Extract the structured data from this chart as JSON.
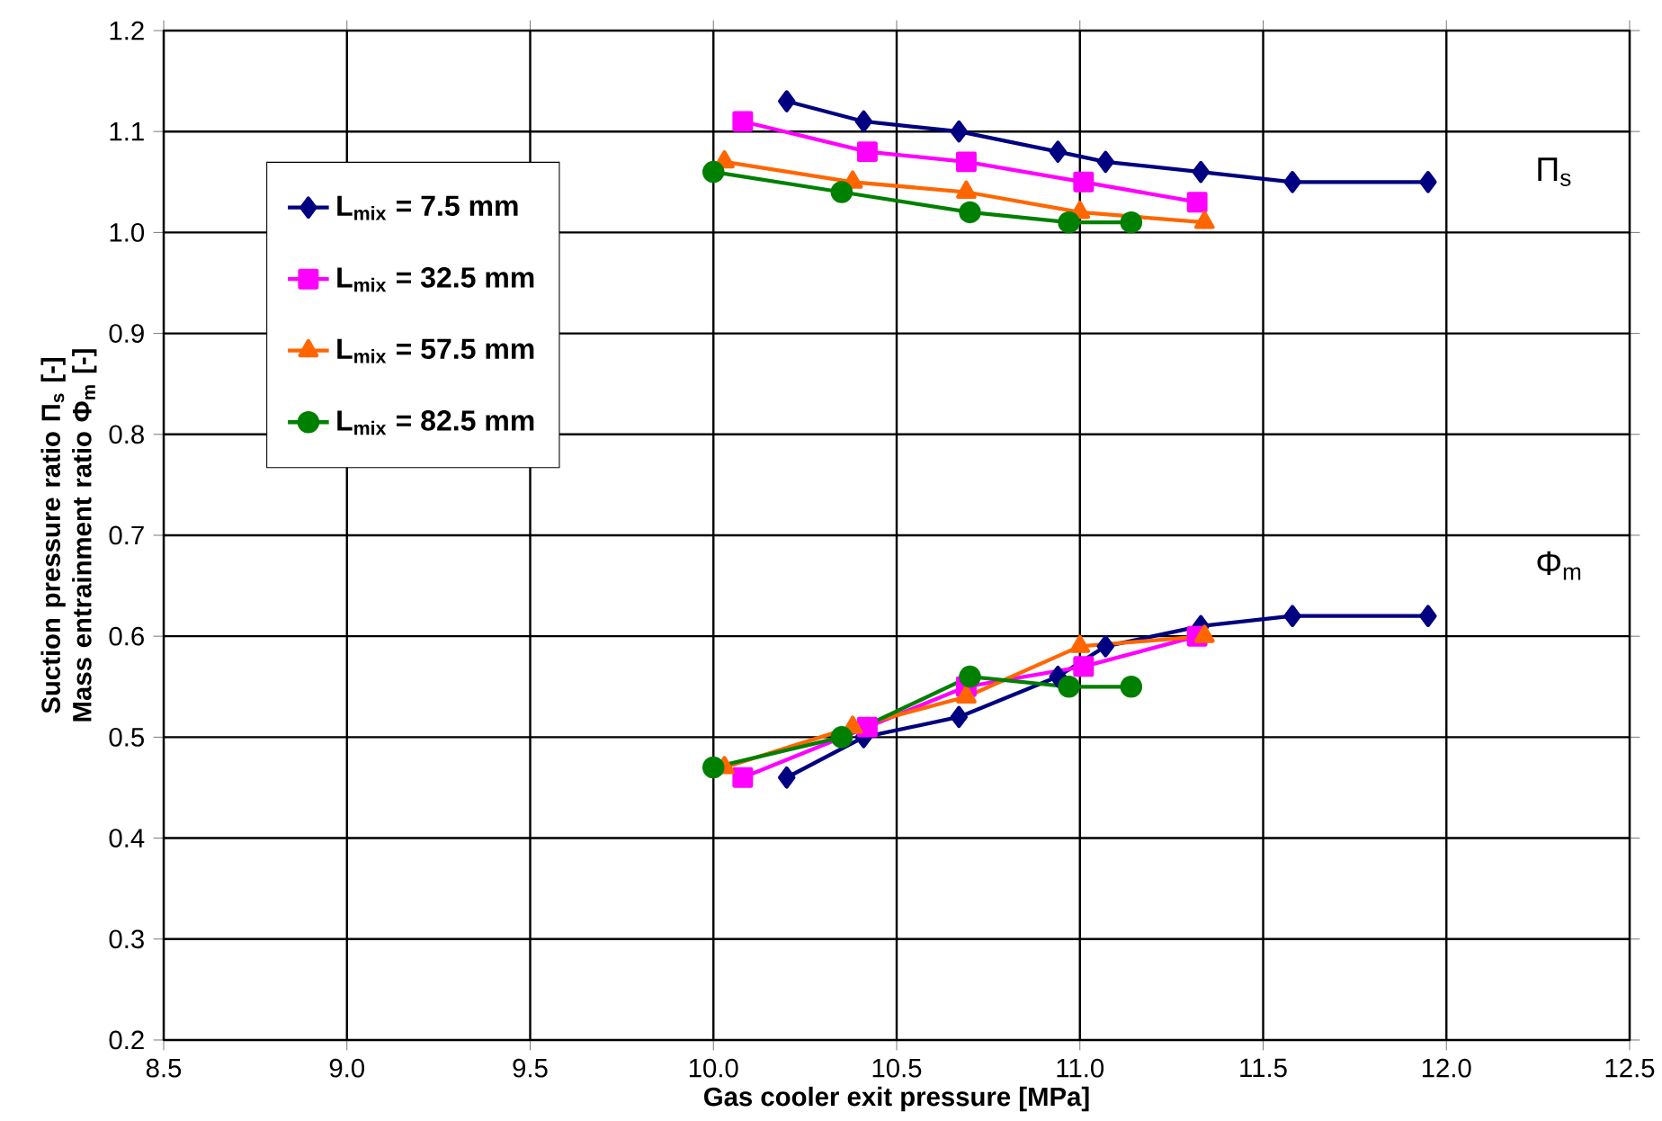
{
  "chart_data": {
    "type": "line",
    "xlabel": "Gas cooler exit pressure [MPa]",
    "ylabel": "Suction pressure ratio Π$_{s}$ [-] Mass entrainment ratio Φ$_{m}$ [-]",
    "xlim": [
      8.5,
      12.5
    ],
    "ylim": [
      0.2,
      1.2
    ],
    "xticks": [
      {
        "value": 8.5,
        "label": "8.5"
      },
      {
        "value": 9,
        "label": "9.0"
      },
      {
        "value": 9.5,
        "label": "9.5"
      },
      {
        "value": 10,
        "label": "10.0"
      },
      {
        "value": 10.5,
        "label": "10.5"
      },
      {
        "value": 11,
        "label": "11.0"
      },
      {
        "value": 11.5,
        "label": "11.5"
      },
      {
        "value": 12,
        "label": "12.0"
      },
      {
        "value": 12.5,
        "label": "12.5"
      }
    ],
    "yticks": [
      0.2,
      0.3,
      0.4,
      0.5,
      0.6,
      0.7,
      0.8,
      0.9,
      {
        "value": 1.0,
        "label": "1.0"
      },
      1.1,
      1.2
    ],
    "grid": true,
    "legend": "left",
    "line_style": "solid",
    "series": [
      {
        "name": "L$_{mix}$ = 7.5 mm",
        "color": "#000080",
        "marker": "diamond",
        "x": [
          10.2,
          10.41,
          10.67,
          10.94,
          11.07,
          11.33,
          11.58,
          11.95,
          null,
          10.2,
          10.41,
          10.67,
          10.94,
          11.07,
          11.33,
          11.58,
          11.95
        ],
        "values": [
          1.13,
          1.11,
          1.1,
          1.08,
          1.07,
          1.06,
          1.05,
          1.05,
          null,
          0.46,
          0.5,
          0.52,
          0.56,
          0.59,
          0.61,
          0.62,
          0.62
        ]
      },
      {
        "name": "L$_{mix}$ = 32.5 mm",
        "color": "#ff00ff",
        "marker": "square",
        "x": [
          10.08,
          10.42,
          10.69,
          11.01,
          11.32,
          null,
          10.08,
          10.42,
          10.69,
          11.01,
          11.32
        ],
        "values": [
          1.11,
          1.08,
          1.07,
          1.05,
          1.03,
          null,
          0.46,
          0.51,
          0.55,
          0.57,
          0.6
        ]
      },
      {
        "name": "L$_{mix}$ = 57.5 mm",
        "color": "#ff6600",
        "marker": "triangle",
        "x": [
          10.03,
          10.38,
          10.69,
          11.0,
          11.34,
          null,
          10.03,
          10.38,
          10.69,
          11.0,
          11.34
        ],
        "values": [
          1.07,
          1.05,
          1.04,
          1.02,
          1.01,
          null,
          0.47,
          0.51,
          0.54,
          0.59,
          0.6
        ]
      },
      {
        "name": "L$_{mix}$ = 82.5 mm",
        "color": "#008000",
        "marker": "circle",
        "x": [
          10.0,
          10.35,
          10.7,
          10.97,
          11.14,
          null,
          10.0,
          10.35,
          10.7,
          10.97,
          11.14
        ],
        "values": [
          1.06,
          1.04,
          1.02,
          1.01,
          1.01,
          null,
          0.47,
          0.5,
          0.56,
          0.55,
          0.55
        ]
      }
    ],
    "annotations": [
      "Π$_{s}$",
      "Φ$_{m}$"
    ]
  }
}
